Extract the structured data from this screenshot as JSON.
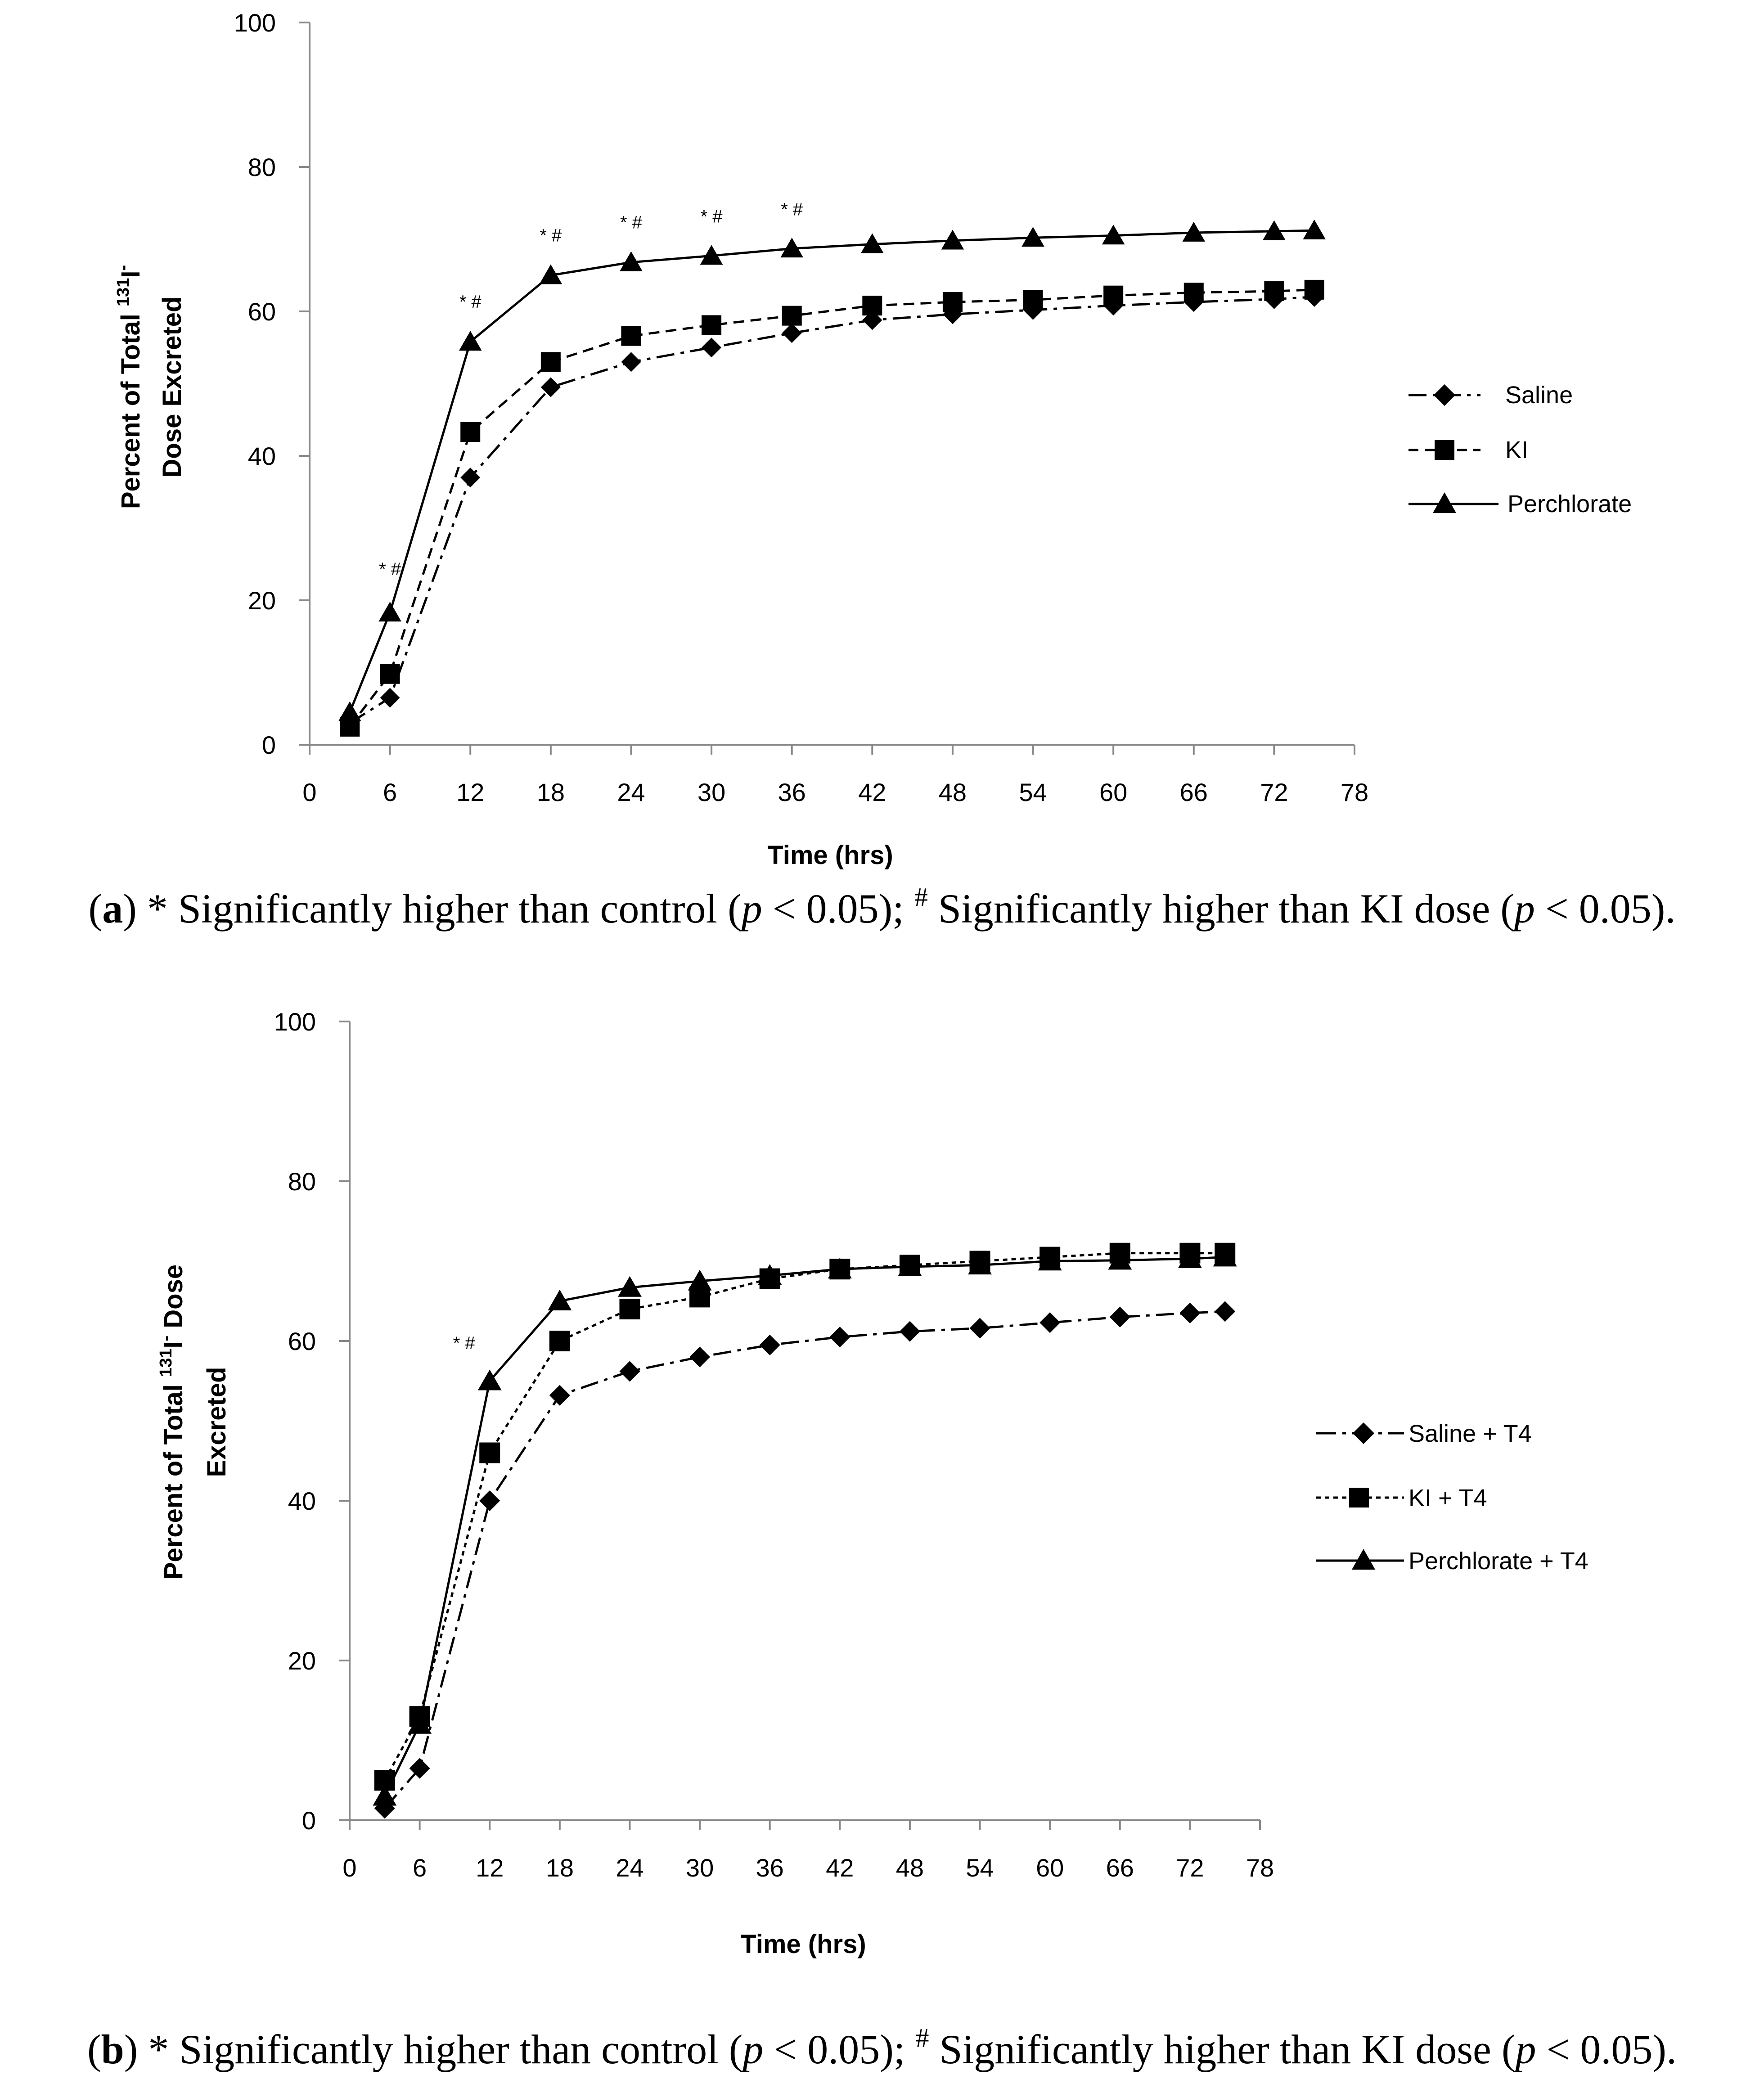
{
  "figures": [
    {
      "panel": "a",
      "chart_data": {
        "type": "line",
        "xlabel": "Time (hrs)",
        "ylabel_line1": "Percent of Total ",
        "ylabel_sup": "131",
        "ylabel_line1_end": "I",
        "ylabel_sup2": "-",
        "ylabel_line2": "Dose Excreted",
        "xlim": [
          0,
          78
        ],
        "ylim": [
          0,
          100
        ],
        "xticks": [
          0,
          6,
          12,
          18,
          24,
          30,
          36,
          42,
          48,
          54,
          60,
          66,
          72,
          78
        ],
        "xtick_labels": [
          "0",
          "6",
          "12",
          "18",
          "24",
          "30",
          "36",
          "42",
          "48",
          "54",
          "60",
          "66",
          "72",
          "78"
        ],
        "yticks": [
          0,
          20,
          40,
          60,
          80,
          100
        ],
        "ytick_labels": [
          "0",
          "20",
          "40",
          "60",
          "80",
          "100"
        ],
        "x": [
          3,
          6,
          12,
          18,
          24,
          30,
          36,
          42,
          48,
          54,
          60,
          66,
          72,
          75
        ],
        "series": [
          {
            "name": "Saline",
            "legend_label": "Saline",
            "marker": "diamond",
            "dash": "dashdot",
            "values": [
              3,
              6.5,
              37,
              49.5,
              53,
              55,
              57,
              58.8,
              59.6,
              60.2,
              60.8,
              61.3,
              61.7,
              62
            ]
          },
          {
            "name": "KI",
            "legend_label": "KI",
            "marker": "square",
            "dash": "dashed",
            "values": [
              2.5,
              9.8,
              43.3,
              53,
              56.6,
              58.1,
              59.4,
              60.8,
              61.3,
              61.6,
              62.2,
              62.6,
              62.8,
              63
            ]
          },
          {
            "name": "Perchlorate",
            "legend_label": "Perchlorate",
            "marker": "triangle",
            "dash": "solid",
            "values": [
              4.5,
              18.3,
              55.8,
              65,
              66.8,
              67.7,
              68.7,
              69.3,
              69.8,
              70.2,
              70.5,
              70.9,
              71.1,
              71.2
            ]
          }
        ],
        "annotations": [
          {
            "x": 6,
            "y": 23.5,
            "text": "* #"
          },
          {
            "x": 12,
            "y": 60.5,
            "text": "* #"
          },
          {
            "x": 18,
            "y": 69.7,
            "text": "* #"
          },
          {
            "x": 24,
            "y": 71.5,
            "text": "* #"
          },
          {
            "x": 30,
            "y": 72.3,
            "text": "* #"
          },
          {
            "x": 36,
            "y": 73.3,
            "text": "* #"
          }
        ],
        "legend_position": "right"
      },
      "caption": {
        "label": "a",
        "text1": " * Significantly higher than control (",
        "p1": "p",
        "text2": " < 0.05); ",
        "hash": "#",
        "text3": " Significantly higher than KI dose (",
        "p2": "p",
        "text4": " < 0.05)."
      }
    },
    {
      "panel": "b",
      "chart_data": {
        "type": "line",
        "xlabel": "Time (hrs)",
        "ylabel_line1": "Percent of Total ",
        "ylabel_sup": "131",
        "ylabel_line1_end": "I",
        "ylabel_sup2": "-",
        "ylabel_line1_tail": " Dose",
        "ylabel_line2": "Excreted",
        "xlim": [
          0,
          78
        ],
        "ylim": [
          0,
          100
        ],
        "xticks": [
          0,
          6,
          12,
          18,
          24,
          30,
          36,
          42,
          48,
          54,
          60,
          66,
          72,
          78
        ],
        "xtick_labels": [
          "0",
          "6",
          "12",
          "18",
          "24",
          "30",
          "36",
          "42",
          "48",
          "54",
          "60",
          "66",
          "72",
          "78"
        ],
        "yticks": [
          0,
          20,
          40,
          60,
          80,
          100
        ],
        "ytick_labels": [
          "0",
          "20",
          "40",
          "60",
          "80",
          "100"
        ],
        "x": [
          3,
          6,
          12,
          18,
          24,
          30,
          36,
          42,
          48,
          54,
          60,
          66,
          72,
          75
        ],
        "series": [
          {
            "name": "Saline + T4",
            "legend_label": "Saline + T4",
            "marker": "diamond",
            "dash": "dashdot",
            "values": [
              1.5,
              6.5,
              40,
              53.2,
              56.2,
              58,
              59.5,
              60.5,
              61.2,
              61.6,
              62.3,
              63,
              63.5,
              63.7
            ]
          },
          {
            "name": "KI + T4",
            "legend_label": "KI + T4",
            "marker": "square",
            "dash": "dotted",
            "values": [
              5,
              13,
              46,
              60,
              64,
              65.5,
              67.8,
              69,
              69.5,
              70,
              70.5,
              71,
              71,
              71
            ]
          },
          {
            "name": "Perchlorate + T4",
            "legend_label": "Perchlorate + T4",
            "marker": "triangle",
            "dash": "solid",
            "values": [
              3,
              12,
              55,
              65,
              66.7,
              67.5,
              68.2,
              69,
              69.3,
              69.5,
              70,
              70.1,
              70.3,
              70.5
            ]
          }
        ],
        "annotations": [
          {
            "x": 9.8,
            "y": 59,
            "text": "* #"
          }
        ],
        "legend_position": "right"
      },
      "caption": {
        "label": "b",
        "text1": " * Significantly higher than control (",
        "p1": "p",
        "text2": " < 0.05); ",
        "hash": "#",
        "text3": " Significantly higher than KI dose (",
        "p2": "p",
        "text4": " < 0.05)."
      }
    }
  ]
}
